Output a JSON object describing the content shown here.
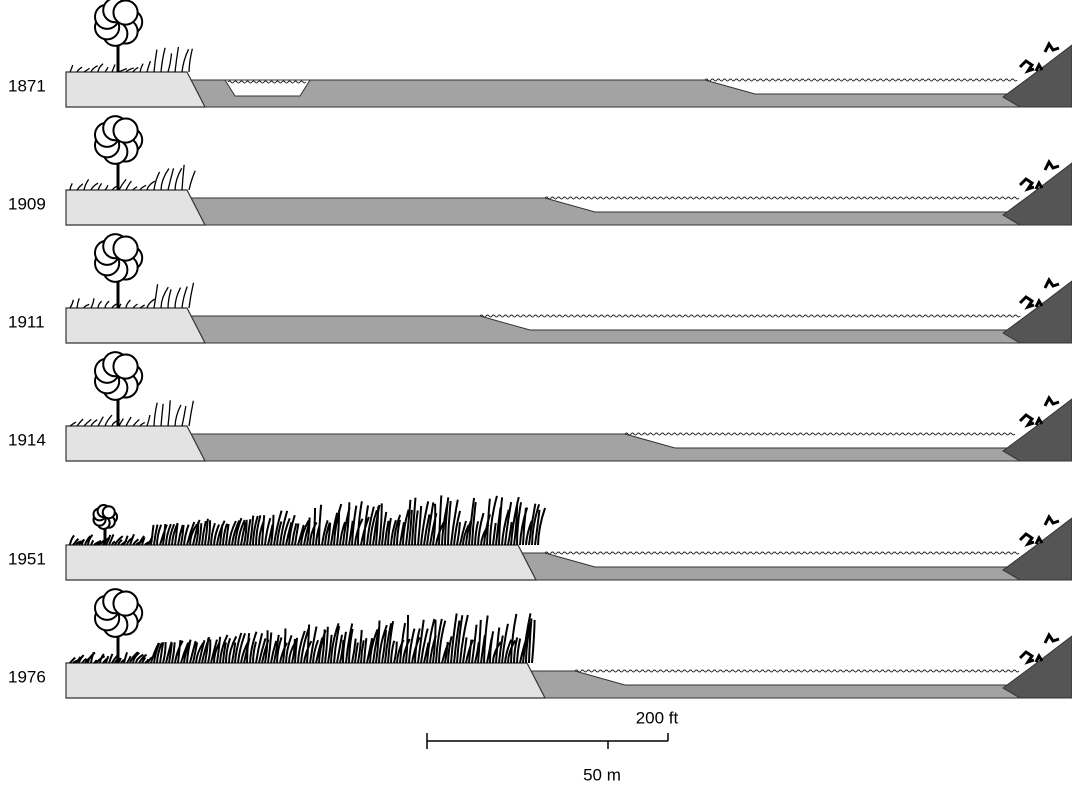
{
  "panels": [
    {
      "year": "1871"
    },
    {
      "year": "1909"
    },
    {
      "year": "1911"
    },
    {
      "year": "1914"
    },
    {
      "year": "1951"
    },
    {
      "year": "1976"
    }
  ],
  "scale": {
    "feet": "200 ft",
    "meters": "50 m"
  }
}
